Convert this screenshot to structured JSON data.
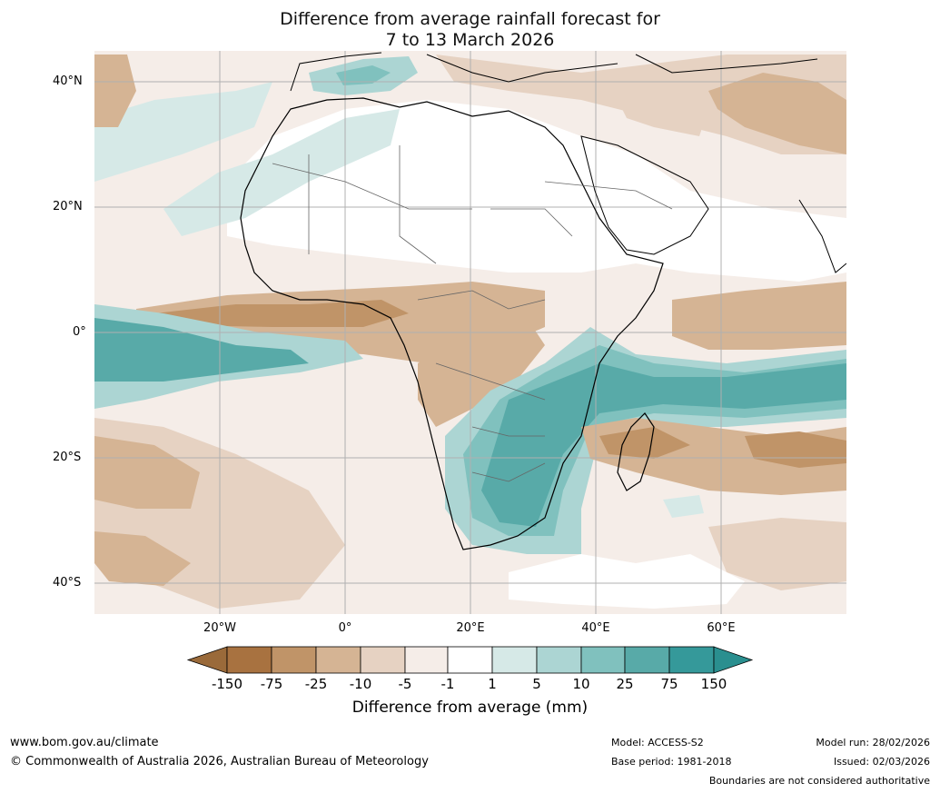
{
  "title_line1": "Difference from average rainfall forecast for",
  "title_line2": "7 to 13 March 2026",
  "lat_labels": [
    "40°N",
    "20°N",
    "0°",
    "20°S",
    "40°S"
  ],
  "lon_labels": [
    "20°W",
    "0°",
    "20°E",
    "40°E",
    "60°E"
  ],
  "colorbar": {
    "label": "Difference from average (mm)",
    "ticks": [
      "-150",
      "-75",
      "-25",
      "-10",
      "-5",
      "-1",
      "1",
      "5",
      "10",
      "25",
      "75",
      "150"
    ],
    "colors": [
      "#a87240",
      "#c09468",
      "#d5b494",
      "#e6d2c2",
      "#f5ede8",
      "#ffffff",
      "#d6e9e7",
      "#acd5d3",
      "#80c1be",
      "#58aaa8",
      "#35999a"
    ],
    "extend_low_color": "#9a6a3a",
    "extend_high_color": "#2a8f8f"
  },
  "footer": {
    "website": "www.bom.gov.au/climate",
    "copyright": "© Commonwealth of Australia 2026, Australian Bureau of Meteorology",
    "model": "Model: ACCESS-S2",
    "base_period": "Base period: 1981-2018",
    "model_run": "Model run: 28/02/2026",
    "issued": "Issued: 02/03/2026",
    "disclaimer": "Boundaries are not considered authoritative"
  }
}
